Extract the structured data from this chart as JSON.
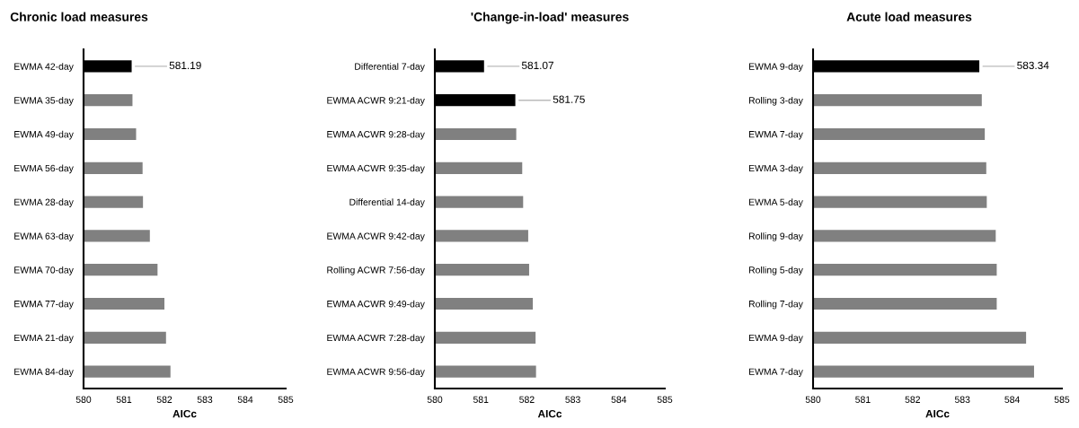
{
  "chart_data": [
    {
      "type": "bar",
      "orientation": "horizontal",
      "title": "Chronic load measures",
      "xlabel": "AICc",
      "categories": [
        "EWMA 42-day",
        "EWMA 35-day",
        "EWMA 49-day",
        "EWMA 56-day",
        "EWMA 28-day",
        "EWMA 63-day",
        "EWMA 70-day",
        "EWMA 77-day",
        "EWMA 21-day",
        "EWMA 84-day"
      ],
      "values": [
        581.19,
        581.21,
        581.3,
        581.46,
        581.47,
        581.64,
        581.83,
        582.0,
        582.04,
        582.15
      ],
      "colors": [
        "#000000",
        "#808080",
        "#808080",
        "#808080",
        "#808080",
        "#808080",
        "#808080",
        "#808080",
        "#808080",
        "#808080"
      ],
      "value_labels": [
        "581.19",
        null,
        null,
        null,
        null,
        null,
        null,
        null,
        null,
        null
      ],
      "xlim": [
        580,
        585
      ],
      "xticks": [
        580,
        581,
        582,
        583,
        584,
        585
      ],
      "grid": false
    },
    {
      "type": "bar",
      "orientation": "horizontal",
      "title": "'Change-in-load' measures",
      "xlabel": "AICc",
      "categories": [
        "Differential 7-day",
        "EWMA ACWR 9:21-day",
        "EWMA ACWR 9:28-day",
        "EWMA ACWR 9:35-day",
        "Differential 14-day",
        "EWMA ACWR 9:42-day",
        "Rolling ACWR 7:56-day",
        "EWMA ACWR 9:49-day",
        "EWMA ACWR 7:28-day",
        "EWMA ACWR 9:56-day"
      ],
      "values": [
        581.07,
        581.75,
        581.77,
        581.9,
        581.92,
        582.03,
        582.05,
        582.13,
        582.19,
        582.2
      ],
      "colors": [
        "#000000",
        "#000000",
        "#808080",
        "#808080",
        "#808080",
        "#808080",
        "#808080",
        "#808080",
        "#808080",
        "#808080"
      ],
      "value_labels": [
        "581.07",
        "581.75",
        null,
        null,
        null,
        null,
        null,
        null,
        null,
        null
      ],
      "xlim": [
        580,
        585
      ],
      "xticks": [
        580,
        581,
        582,
        583,
        584,
        585
      ],
      "grid": false
    },
    {
      "type": "bar",
      "orientation": "horizontal",
      "title": "Acute load measures",
      "xlabel": "AICc",
      "categories": [
        "EWMA 9-day",
        "Rolling 3-day",
        "EWMA 7-day",
        "EWMA 3-day",
        "EWMA 5-day",
        "Rolling 9-day",
        "Rolling 5-day",
        "Rolling 7-day",
        "EWMA 9-day",
        "EWMA 7-day"
      ],
      "values": [
        583.34,
        583.39,
        583.45,
        583.48,
        583.49,
        583.67,
        583.69,
        583.69,
        584.28,
        584.44
      ],
      "colors": [
        "#000000",
        "#808080",
        "#808080",
        "#808080",
        "#808080",
        "#808080",
        "#808080",
        "#808080",
        "#808080",
        "#808080"
      ],
      "value_labels": [
        "583.34",
        null,
        null,
        null,
        null,
        null,
        null,
        null,
        null,
        null
      ],
      "xlim": [
        580,
        585
      ],
      "xticks": [
        580,
        581,
        582,
        583,
        584,
        585
      ],
      "grid": false
    }
  ]
}
